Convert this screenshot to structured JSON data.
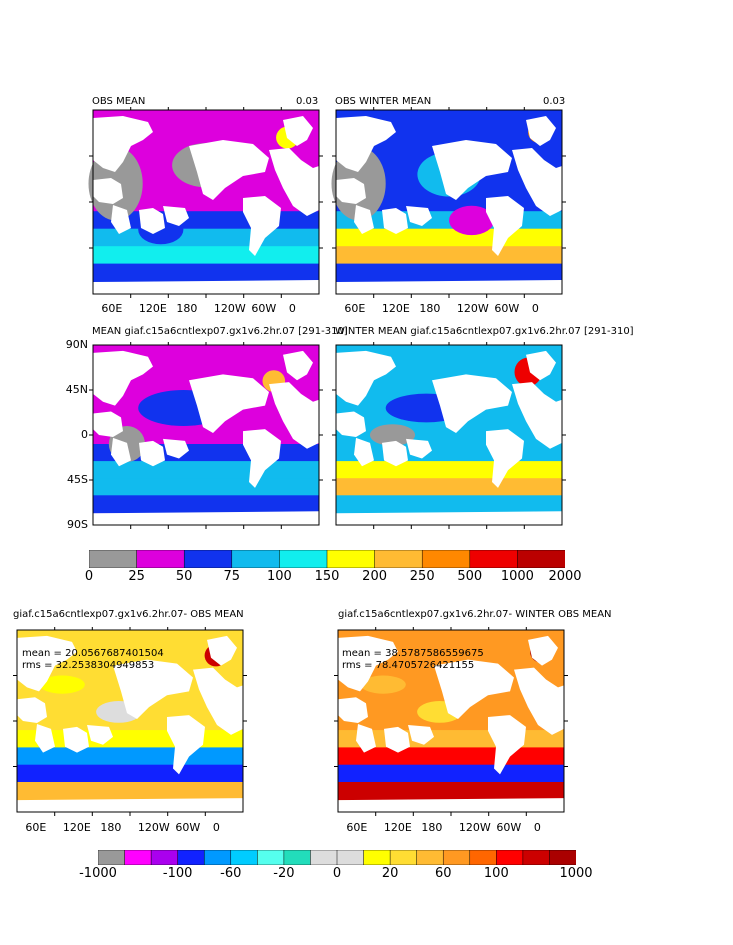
{
  "chart_data": [
    {
      "type": "heatmap",
      "title": "OBS MEAN",
      "corner_value": "0.03",
      "x_ticks": [
        "60E",
        "120E",
        "180",
        "120W",
        "60W",
        "0"
      ],
      "y_ticks": [],
      "colormap": "cbar1"
    },
    {
      "type": "heatmap",
      "title": "OBS WINTER MEAN",
      "corner_value": "0.03",
      "x_ticks": [
        "60E",
        "120E",
        "180",
        "120W",
        "60W",
        "0"
      ],
      "y_ticks": [],
      "colormap": "cbar1"
    },
    {
      "type": "heatmap",
      "title": "MEAN giaf.c15a6cntlexp07.gx1v6.2hr.07 [291-310]",
      "x_ticks": [],
      "y_ticks": [
        "90N",
        "45N",
        "0",
        "45S",
        "90S"
      ],
      "colormap": "cbar1"
    },
    {
      "type": "heatmap",
      "title": "WINTER MEAN giaf.c15a6cntlexp07.gx1v6.2hr.07 [291-310]",
      "x_ticks": [],
      "y_ticks": [],
      "colormap": "cbar1"
    },
    {
      "type": "heatmap",
      "title": "giaf.c15a6cntlexp07.gx1v6.2hr.07- OBS MEAN",
      "stats": [
        "mean = 20.0567687401504",
        "rms = 32.2538304949853"
      ],
      "x_ticks": [
        "60E",
        "120E",
        "180",
        "120W",
        "60W",
        "0"
      ],
      "colormap": "cbar2"
    },
    {
      "type": "heatmap",
      "title": "giaf.c15a6cntlexp07.gx1v6.2hr.07- WINTER OBS MEAN",
      "stats": [
        "mean = 38.5787586559675",
        "rms = 78.4705726421155"
      ],
      "x_ticks": [
        "60E",
        "120E",
        "180",
        "120W",
        "60W",
        "0"
      ],
      "colormap": "cbar2"
    }
  ],
  "colorbars": {
    "cbar1": {
      "colors": [
        "#999999",
        "#dd00dd",
        "#1133ee",
        "#11bbee",
        "#11eeee",
        "#ffff00",
        "#ffbb33",
        "#ff8800",
        "#ee0000",
        "#bb0000"
      ],
      "labels": [
        "0",
        "25",
        "50",
        "75",
        "100",
        "150",
        "200",
        "250",
        "500",
        "1000",
        "2000"
      ]
    },
    "cbar2": {
      "colors": [
        "#999999",
        "#ff00ff",
        "#aa00ee",
        "#1122ff",
        "#0099ff",
        "#00ccff",
        "#55ffee",
        "#22ddbb",
        "#dddddd",
        "#dddddd",
        "#ffff00",
        "#ffdd33",
        "#ffbb33",
        "#ff9922",
        "#ff6600",
        "#ff0000",
        "#cc0000",
        "#aa0000"
      ],
      "labels": [
        "-1000",
        "-100",
        "-60",
        "-20",
        "0",
        "20",
        "60",
        "100",
        "1000"
      ]
    }
  }
}
